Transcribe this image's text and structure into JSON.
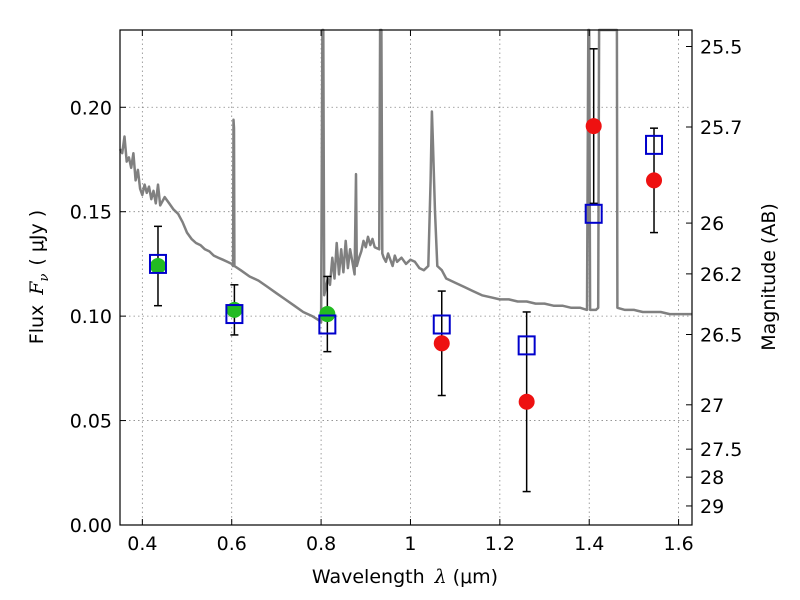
{
  "chart_data": {
    "type": "scatter",
    "xlabel_text": "Wavelength",
    "xlabel_symbol": "λ",
    "xlabel_unit": "(μm)",
    "ylabel_text": "Flux",
    "ylabel_symbol": "F",
    "ylabel_subscript": "ν",
    "ylabel_unit": "( μJy )",
    "y2label": "Magnitude (AB)",
    "xlim": [
      0.35,
      1.63
    ],
    "ylim": [
      0.0,
      0.237
    ],
    "grid": true,
    "grid_style": "dotted",
    "colors": {
      "model": "#808080",
      "observed_optical": "#22bb22",
      "observed_nir": "#ee1111",
      "model_box": "#0000cc",
      "errorbar": "#000000"
    },
    "x_ticks": [
      {
        "value": 0.4,
        "label": "0.4"
      },
      {
        "value": 0.6,
        "label": "0.6"
      },
      {
        "value": 0.8,
        "label": "0.8"
      },
      {
        "value": 1.0,
        "label": "1"
      },
      {
        "value": 1.2,
        "label": "1.2"
      },
      {
        "value": 1.4,
        "label": "1.4"
      },
      {
        "value": 1.6,
        "label": "1.6"
      }
    ],
    "y_ticks": [
      {
        "value": 0.0,
        "label": "0.00"
      },
      {
        "value": 0.05,
        "label": "0.05"
      },
      {
        "value": 0.1,
        "label": "0.10"
      },
      {
        "value": 0.15,
        "label": "0.15"
      },
      {
        "value": 0.2,
        "label": "0.20"
      }
    ],
    "y2_ticks": [
      {
        "mag": 25.5,
        "label": "25.5"
      },
      {
        "mag": 25.7,
        "label": "25.7"
      },
      {
        "mag": 26,
        "label": "26"
      },
      {
        "mag": 26.2,
        "label": "26.2"
      },
      {
        "mag": 26.5,
        "label": "26.5"
      },
      {
        "mag": 27,
        "label": "27"
      },
      {
        "mag": 27.5,
        "label": "27.5"
      },
      {
        "mag": 28,
        "label": "28"
      },
      {
        "mag": 29,
        "label": "29"
      }
    ],
    "observed": [
      {
        "x": 0.435,
        "y": 0.124,
        "err": 0.019,
        "band": "optical"
      },
      {
        "x": 0.606,
        "y": 0.103,
        "err": 0.012,
        "band": "optical"
      },
      {
        "x": 0.814,
        "y": 0.101,
        "err": 0.018,
        "band": "optical"
      },
      {
        "x": 1.07,
        "y": 0.087,
        "err": 0.025,
        "band": "nir"
      },
      {
        "x": 1.26,
        "y": 0.059,
        "err": 0.043,
        "band": "nir"
      },
      {
        "x": 1.41,
        "y": 0.191,
        "err": 0.037,
        "band": "nir"
      },
      {
        "x": 1.545,
        "y": 0.165,
        "err": 0.025,
        "band": "nir"
      }
    ],
    "model_photometry": [
      {
        "x": 0.435,
        "y": 0.125
      },
      {
        "x": 0.606,
        "y": 0.101
      },
      {
        "x": 0.814,
        "y": 0.096
      },
      {
        "x": 1.07,
        "y": 0.096
      },
      {
        "x": 1.26,
        "y": 0.086
      },
      {
        "x": 1.41,
        "y": 0.149
      },
      {
        "x": 1.545,
        "y": 0.182
      }
    ],
    "model_spectrum": [
      [
        0.35,
        0.18
      ],
      [
        0.355,
        0.178
      ],
      [
        0.36,
        0.186
      ],
      [
        0.365,
        0.174
      ],
      [
        0.37,
        0.176
      ],
      [
        0.375,
        0.171
      ],
      [
        0.38,
        0.178
      ],
      [
        0.385,
        0.165
      ],
      [
        0.39,
        0.17
      ],
      [
        0.395,
        0.161
      ],
      [
        0.4,
        0.158
      ],
      [
        0.405,
        0.163
      ],
      [
        0.41,
        0.159
      ],
      [
        0.415,
        0.162
      ],
      [
        0.42,
        0.156
      ],
      [
        0.425,
        0.16
      ],
      [
        0.43,
        0.154
      ],
      [
        0.435,
        0.163
      ],
      [
        0.44,
        0.153
      ],
      [
        0.45,
        0.157
      ],
      [
        0.46,
        0.154
      ],
      [
        0.47,
        0.151
      ],
      [
        0.48,
        0.149
      ],
      [
        0.49,
        0.145
      ],
      [
        0.5,
        0.14
      ],
      [
        0.51,
        0.137
      ],
      [
        0.52,
        0.135
      ],
      [
        0.53,
        0.134
      ],
      [
        0.54,
        0.132
      ],
      [
        0.55,
        0.131
      ],
      [
        0.56,
        0.129
      ],
      [
        0.57,
        0.128
      ],
      [
        0.58,
        0.127
      ],
      [
        0.59,
        0.126
      ],
      [
        0.6,
        0.125
      ],
      [
        0.603,
        0.124
      ],
      [
        0.604,
        0.194
      ],
      [
        0.605,
        0.19
      ],
      [
        0.606,
        0.124
      ],
      [
        0.62,
        0.122
      ],
      [
        0.64,
        0.119
      ],
      [
        0.66,
        0.117
      ],
      [
        0.68,
        0.114
      ],
      [
        0.7,
        0.111
      ],
      [
        0.72,
        0.108
      ],
      [
        0.74,
        0.105
      ],
      [
        0.76,
        0.102
      ],
      [
        0.78,
        0.1
      ],
      [
        0.795,
        0.098
      ],
      [
        0.8,
        0.097
      ],
      [
        0.803,
        0.237
      ],
      [
        0.805,
        0.237
      ],
      [
        0.807,
        0.11
      ],
      [
        0.815,
        0.118
      ],
      [
        0.82,
        0.115
      ],
      [
        0.825,
        0.128
      ],
      [
        0.83,
        0.118
      ],
      [
        0.835,
        0.135
      ],
      [
        0.84,
        0.12
      ],
      [
        0.845,
        0.132
      ],
      [
        0.85,
        0.121
      ],
      [
        0.855,
        0.136
      ],
      [
        0.86,
        0.123
      ],
      [
        0.865,
        0.132
      ],
      [
        0.87,
        0.126
      ],
      [
        0.875,
        0.12
      ],
      [
        0.878,
        0.168
      ],
      [
        0.88,
        0.124
      ],
      [
        0.885,
        0.128
      ],
      [
        0.89,
        0.131
      ],
      [
        0.895,
        0.136
      ],
      [
        0.9,
        0.133
      ],
      [
        0.905,
        0.138
      ],
      [
        0.91,
        0.134
      ],
      [
        0.915,
        0.137
      ],
      [
        0.92,
        0.133
      ],
      [
        0.93,
        0.132
      ],
      [
        0.932,
        0.237
      ],
      [
        0.935,
        0.237
      ],
      [
        0.937,
        0.13
      ],
      [
        0.94,
        0.128
      ],
      [
        0.945,
        0.126
      ],
      [
        0.95,
        0.13
      ],
      [
        0.96,
        0.124
      ],
      [
        0.965,
        0.129
      ],
      [
        0.97,
        0.126
      ],
      [
        0.98,
        0.128
      ],
      [
        0.99,
        0.125
      ],
      [
        1.0,
        0.127
      ],
      [
        1.01,
        0.126
      ],
      [
        1.02,
        0.123
      ],
      [
        1.03,
        0.122
      ],
      [
        1.04,
        0.124
      ],
      [
        1.045,
        0.165
      ],
      [
        1.048,
        0.198
      ],
      [
        1.05,
        0.185
      ],
      [
        1.055,
        0.15
      ],
      [
        1.06,
        0.124
      ],
      [
        1.07,
        0.122
      ],
      [
        1.08,
        0.118
      ],
      [
        1.1,
        0.116
      ],
      [
        1.12,
        0.114
      ],
      [
        1.14,
        0.112
      ],
      [
        1.16,
        0.11
      ],
      [
        1.18,
        0.109
      ],
      [
        1.2,
        0.108
      ],
      [
        1.22,
        0.108
      ],
      [
        1.24,
        0.107
      ],
      [
        1.26,
        0.107
      ],
      [
        1.28,
        0.106
      ],
      [
        1.3,
        0.106
      ],
      [
        1.32,
        0.105
      ],
      [
        1.34,
        0.105
      ],
      [
        1.36,
        0.104
      ],
      [
        1.38,
        0.104
      ],
      [
        1.395,
        0.103
      ],
      [
        1.398,
        0.237
      ],
      [
        1.4,
        0.237
      ],
      [
        1.402,
        0.103
      ],
      [
        1.41,
        0.103
      ],
      [
        1.415,
        0.103
      ],
      [
        1.42,
        0.104
      ],
      [
        1.422,
        0.237
      ],
      [
        1.462,
        0.237
      ],
      [
        1.463,
        0.104
      ],
      [
        1.48,
        0.103
      ],
      [
        1.5,
        0.103
      ],
      [
        1.52,
        0.102
      ],
      [
        1.54,
        0.102
      ],
      [
        1.56,
        0.102
      ],
      [
        1.58,
        0.101
      ],
      [
        1.6,
        0.101
      ],
      [
        1.63,
        0.101
      ]
    ]
  }
}
